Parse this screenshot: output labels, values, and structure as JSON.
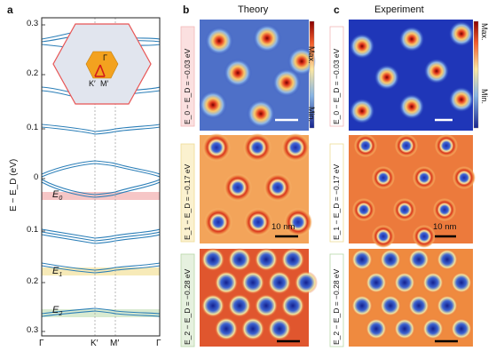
{
  "panels": {
    "a": {
      "letter": "a"
    },
    "b": {
      "letter": "b",
      "heading": "Theory"
    },
    "c": {
      "letter": "c",
      "heading": "Experiment"
    }
  },
  "band_plot": {
    "ylabel": "E − E_D (eV)",
    "y_ticks": [
      "0.3",
      "0.2",
      "0.1",
      "0",
      "0.1",
      "0.2",
      "0.3"
    ],
    "x_ticks": [
      "Γ",
      "K′",
      "M′",
      "Γ"
    ],
    "energy_labels": [
      {
        "main": "E",
        "sub": "0"
      },
      {
        "main": "E",
        "sub": "1"
      },
      {
        "main": "E",
        "sub": "2"
      }
    ],
    "inset_labels": [
      "Γ",
      "K′",
      "M′"
    ],
    "highlight_colors": [
      "#f6c6c6",
      "#f7eab8",
      "#d8ead0"
    ]
  },
  "rows": [
    {
      "label": "E_0 − E_D = −0.03 eV",
      "border": "#f2b8b8",
      "scale_bar": ""
    },
    {
      "label": "E_1 − E_D = −0.17 eV",
      "border": "#eedc95",
      "scale_bar": "10 nm"
    },
    {
      "label": "E_2 − E_D = −0.28 eV",
      "border": "#b8d7a8",
      "scale_bar": ""
    }
  ],
  "colorbar": {
    "max_label": "Max.",
    "min_label": "Min."
  }
}
